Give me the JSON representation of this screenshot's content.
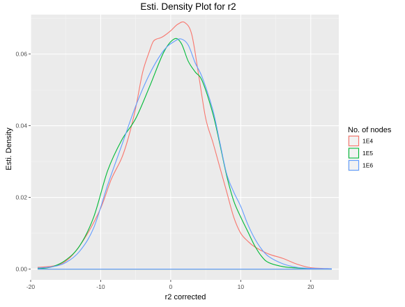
{
  "chart_data": {
    "type": "line",
    "title": "Esti. Density Plot for r2",
    "xlabel": "r2 corrected",
    "ylabel": "Esti. Density",
    "xlim": [
      -20,
      24
    ],
    "ylim": [
      -0.003,
      0.071
    ],
    "x_ticks": [
      -20,
      -10,
      0,
      10,
      20
    ],
    "x_tick_labels": [
      "-20",
      "-10",
      "0",
      "10",
      "20"
    ],
    "y_ticks": [
      0.0,
      0.02,
      0.04,
      0.06
    ],
    "y_tick_labels": [
      "0.00",
      "0.02",
      "0.04",
      "0.06"
    ],
    "grid": true,
    "background": "#ebebeb",
    "legend": {
      "title": "No. of nodes",
      "position": "right"
    },
    "series": [
      {
        "name": "1E4",
        "color": "#F8766D",
        "points": [
          [
            -19,
            0.0005
          ],
          [
            -17,
            0.0008
          ],
          [
            -15.5,
            0.0016
          ],
          [
            -14,
            0.004
          ],
          [
            -12,
            0.0095
          ],
          [
            -10,
            0.017
          ],
          [
            -8.5,
            0.025
          ],
          [
            -7,
            0.031
          ],
          [
            -6,
            0.037
          ],
          [
            -5,
            0.045
          ],
          [
            -4,
            0.055
          ],
          [
            -3,
            0.061
          ],
          [
            -2.5,
            0.0635
          ],
          [
            -2,
            0.0642
          ],
          [
            -1.5,
            0.0645
          ],
          [
            -1,
            0.065
          ],
          [
            0,
            0.0665
          ],
          [
            1,
            0.0683
          ],
          [
            2,
            0.0688
          ],
          [
            3,
            0.0655
          ],
          [
            4,
            0.054
          ],
          [
            5,
            0.042
          ],
          [
            6,
            0.0355
          ],
          [
            7,
            0.0285
          ],
          [
            8,
            0.0215
          ],
          [
            9,
            0.0145
          ],
          [
            10,
            0.01
          ],
          [
            11,
            0.0078
          ],
          [
            12,
            0.0062
          ],
          [
            14,
            0.0042
          ],
          [
            16,
            0.003
          ],
          [
            18,
            0.0014
          ],
          [
            20,
            0.0004
          ],
          [
            23,
            0.0001
          ]
        ]
      },
      {
        "name": "1E5",
        "color": "#00BA38",
        "points": [
          [
            -19,
            0.0001
          ],
          [
            -17,
            0.0006
          ],
          [
            -15,
            0.0025
          ],
          [
            -13,
            0.0065
          ],
          [
            -11,
            0.0145
          ],
          [
            -9,
            0.0275
          ],
          [
            -7,
            0.036
          ],
          [
            -5,
            0.042
          ],
          [
            -3,
            0.051
          ],
          [
            -1,
            0.0605
          ],
          [
            0.5,
            0.0642
          ],
          [
            1.5,
            0.063
          ],
          [
            2.5,
            0.058
          ],
          [
            3.5,
            0.055
          ],
          [
            4.5,
            0.0525
          ],
          [
            6,
            0.0435
          ],
          [
            7,
            0.035
          ],
          [
            8,
            0.026
          ],
          [
            9,
            0.019
          ],
          [
            10,
            0.0145
          ],
          [
            11,
            0.0105
          ],
          [
            12,
            0.0065
          ],
          [
            13,
            0.0035
          ],
          [
            14,
            0.0018
          ],
          [
            16,
            0.0007
          ],
          [
            18,
            0.0003
          ],
          [
            20,
            0.0001
          ],
          [
            23,
            5e-05
          ]
        ]
      },
      {
        "name": "1E6",
        "color": "#619CFF",
        "points": [
          [
            -19,
            0.0003
          ],
          [
            -17,
            0.0006
          ],
          [
            -15,
            0.0018
          ],
          [
            -13,
            0.005
          ],
          [
            -11,
            0.0115
          ],
          [
            -9,
            0.0235
          ],
          [
            -7,
            0.0345
          ],
          [
            -5,
            0.0455
          ],
          [
            -3,
            0.0545
          ],
          [
            -1,
            0.061
          ],
          [
            0.5,
            0.0635
          ],
          [
            1.5,
            0.0642
          ],
          [
            2.5,
            0.0625
          ],
          [
            3.5,
            0.0575
          ],
          [
            4.5,
            0.0535
          ],
          [
            6,
            0.0445
          ],
          [
            7,
            0.0355
          ],
          [
            8,
            0.0265
          ],
          [
            9,
            0.0215
          ],
          [
            10,
            0.0175
          ],
          [
            11,
            0.0125
          ],
          [
            12,
            0.0085
          ],
          [
            13,
            0.0055
          ],
          [
            14,
            0.0035
          ],
          [
            16,
            0.0015
          ],
          [
            18,
            0.0005
          ],
          [
            20,
            0.0002
          ],
          [
            23,
            0.0001
          ]
        ]
      }
    ]
  }
}
